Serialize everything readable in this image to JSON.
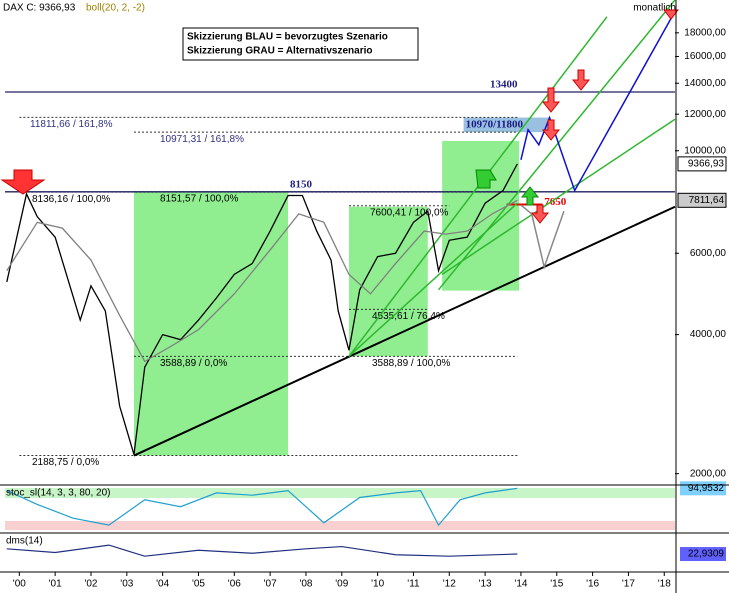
{
  "chart_data": {
    "type": "line",
    "log_y": true,
    "xlim": [
      1999.6,
      2018.3
    ],
    "ylim": [
      1890,
      21200
    ],
    "xticks": [
      {
        "value": 2000,
        "label": "'00"
      },
      {
        "value": 2001,
        "label": "'01"
      },
      {
        "value": 2002,
        "label": "'02"
      },
      {
        "value": 2003,
        "label": "'03"
      },
      {
        "value": 2004,
        "label": "'04"
      },
      {
        "value": 2005,
        "label": "'05"
      },
      {
        "value": 2006,
        "label": "'06"
      },
      {
        "value": 2007,
        "label": "'07"
      },
      {
        "value": 2008,
        "label": "'08"
      },
      {
        "value": 2009,
        "label": "'09"
      },
      {
        "value": 2010,
        "label": "'10"
      },
      {
        "value": 2011,
        "label": "'11"
      },
      {
        "value": 2012,
        "label": "'12"
      },
      {
        "value": 2013,
        "label": "'13"
      },
      {
        "value": 2014,
        "label": "'14"
      },
      {
        "value": 2015,
        "label": "'15"
      },
      {
        "value": 2016,
        "label": "'16"
      },
      {
        "value": 2017,
        "label": "'17"
      },
      {
        "value": 2018,
        "label": "'18"
      }
    ],
    "yticks": [
      {
        "value": 2000,
        "label": "2000,00"
      },
      {
        "value": 4000,
        "label": "4000,00"
      },
      {
        "value": 6000,
        "label": "6000,00"
      },
      {
        "value": 10000,
        "label": "10000,00"
      },
      {
        "value": 12000,
        "label": "12000,00"
      },
      {
        "value": 14000,
        "label": "14000,00"
      },
      {
        "value": 16000,
        "label": "16000,00"
      },
      {
        "value": 18000,
        "label": "18000,00"
      }
    ],
    "series": [
      {
        "name": "DAX C: 9366,93",
        "color": "#000000",
        "x": [
          1999.65,
          2000.2,
          2000.5,
          2001.0,
          2001.7,
          2002.0,
          2002.4,
          2002.8,
          2003.2,
          2003.5,
          2004.0,
          2004.5,
          2005.0,
          2005.5,
          2006.0,
          2006.5,
          2007.0,
          2007.5,
          2007.9,
          2008.3,
          2008.7,
          2008.9,
          2009.2,
          2009.5,
          2010.0,
          2010.5,
          2011.0,
          2011.4,
          2011.7,
          2012.0,
          2012.5,
          2013.0,
          2013.5,
          2013.9
        ],
        "values": [
          5200,
          8064,
          7200,
          6500,
          4300,
          5100,
          4500,
          2800,
          2200,
          3400,
          4000,
          3900,
          4300,
          4800,
          5400,
          5700,
          6700,
          8000,
          8000,
          6700,
          5800,
          4500,
          3700,
          5000,
          5900,
          6000,
          7000,
          7400,
          5500,
          6400,
          6500,
          7700,
          8200,
          9366.93
        ]
      },
      {
        "name": "boll(20, 2, -2)",
        "color": "#808080",
        "x": [
          1999.65,
          2000.5,
          2001.2,
          2002.0,
          2002.8,
          2003.5,
          2004.3,
          2005.0,
          2006.0,
          2007.0,
          2007.8,
          2008.5,
          2009.2,
          2009.8,
          2010.5,
          2011.3,
          2011.9,
          2012.5,
          2013.2,
          2013.9
        ],
        "values": [
          5500,
          7000,
          6800,
          5800,
          4400,
          3500,
          3800,
          4100,
          4900,
          6100,
          7300,
          7000,
          5400,
          4900,
          5700,
          6700,
          6600,
          6700,
          7300,
          7811.64
        ]
      }
    ],
    "last_value_labels": [
      {
        "value": 9366.93,
        "label": "9366,93"
      },
      {
        "value": 7811.64,
        "label": "7811,64"
      }
    ],
    "levels": [
      {
        "value": 13400,
        "label": "13400"
      },
      {
        "value": 8150,
        "label": "8150"
      }
    ],
    "fib_lines": [
      {
        "value": 11811.66,
        "label": "11811,66 / 161,8%"
      },
      {
        "value": 10971.31,
        "label": "10971,31 / 161,8%"
      },
      {
        "value": 8136.16,
        "label": "8136,16 / 100,0%"
      },
      {
        "value": 8151.57,
        "label": "8151,57 / 100,0%"
      },
      {
        "value": 7600.41,
        "label": "7600,41 / 100,0%"
      },
      {
        "value": 4535.61,
        "label": "4535,61 / 76,4%"
      },
      {
        "value": 3588.89,
        "label": "3588,89 / 0,0%"
      },
      {
        "value": 3588.89,
        "label": "3588,89 / 100,0%"
      },
      {
        "value": 2188.75,
        "label": "2188,75 / 0,0%"
      }
    ],
    "zones": [
      {
        "x": [
          2003.2,
          2007.5
        ],
        "y": [
          2188.75,
          8151.57
        ]
      },
      {
        "x": [
          2009.2,
          2011.4
        ],
        "y": [
          3588.89,
          7565
        ]
      },
      {
        "x": [
          2011.8,
          2013.95
        ],
        "y": [
          4980,
          10500
        ]
      }
    ],
    "target_zone": {
      "label": "10970/11800",
      "y": [
        10970,
        11800
      ],
      "x": [
        2012.4,
        2014.8
      ]
    },
    "stop": {
      "label": "7650",
      "value": 7650
    },
    "support_line": {
      "x": [
        2003.2,
        2018.3
      ],
      "y": [
        2188.75,
        7565
      ]
    },
    "channel_lines": [
      {
        "x": [
          2009.2,
          2016.4
        ],
        "y": [
          3588.89,
          19500
        ]
      },
      {
        "x": [
          2011.7,
          2018.3
        ],
        "y": [
          5000,
          21200
        ]
      },
      {
        "x": [
          2011.8,
          2018.3
        ],
        "y": [
          5400,
          11700
        ]
      },
      {
        "x": [
          2009.2,
          2013.9
        ],
        "y": [
          3588.89,
          7700
        ]
      }
    ],
    "blue_path": {
      "x": [
        2014.0,
        2014.2,
        2014.5,
        2014.8,
        2015.5,
        2018.2
      ],
      "y": [
        9560,
        11100,
        10300,
        11800,
        8200,
        19400
      ]
    },
    "gray_path": {
      "x": [
        2014.0,
        2014.3,
        2014.65,
        2015.2
      ],
      "y": [
        7630,
        7300,
        5600,
        7400
      ]
    },
    "notes": [
      "Skizzierung BLAU = bevorzugtes Szenario",
      "Skizzierung GRAU = Alternativszenario"
    ],
    "period": "monatlich",
    "stoch": {
      "name": "stoc_sl(14, 3, 3, 80, 20)",
      "value_label": "94,9532",
      "ylim": [
        0,
        100
      ],
      "x": [
        1999.65,
        2000.5,
        2001.5,
        2002.5,
        2003.5,
        2004.5,
        2005.5,
        2006.5,
        2007.5,
        2008.5,
        2009.5,
        2010.5,
        2011.2,
        2011.7,
        2012.3,
        2013.0,
        2013.9
      ],
      "values": [
        90,
        60,
        30,
        15,
        70,
        55,
        85,
        80,
        90,
        20,
        75,
        85,
        90,
        15,
        70,
        85,
        94.9532
      ]
    },
    "dms": {
      "name": "dms(14)",
      "value_label": "22,9309",
      "ylim": [
        0,
        50
      ],
      "x": [
        1999.65,
        2001,
        2002.5,
        2003.5,
        2005,
        2006.5,
        2008,
        2009,
        2010.5,
        2012,
        2013.9
      ],
      "values": [
        30,
        25,
        35,
        20,
        28,
        24,
        30,
        33,
        22,
        20,
        22.9309
      ]
    }
  }
}
